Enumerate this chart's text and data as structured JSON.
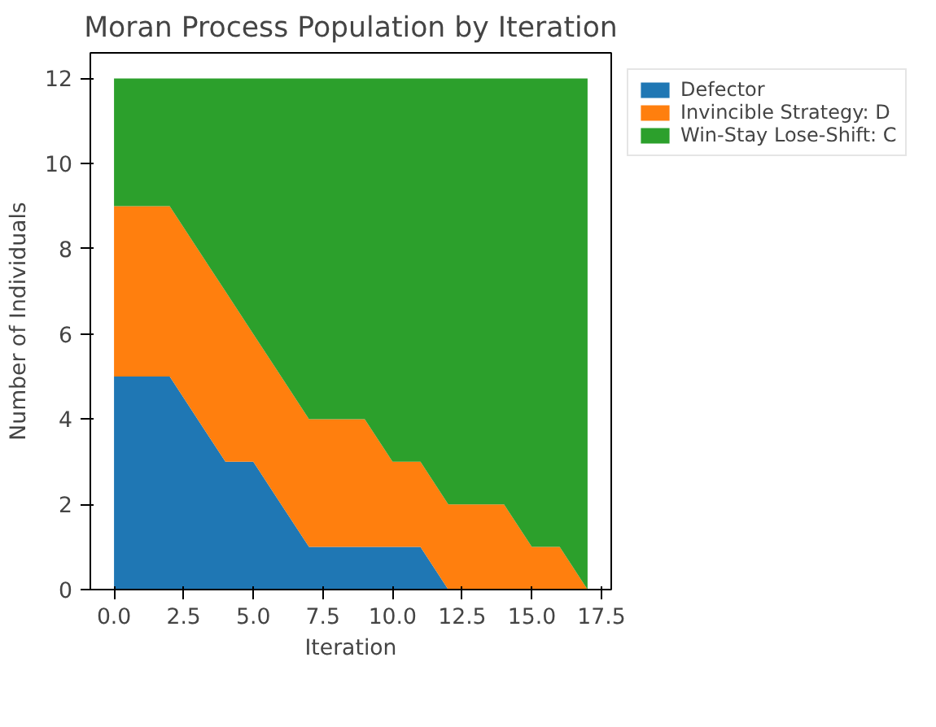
{
  "chart_data": {
    "type": "area",
    "stacked": true,
    "title": "Moran Process Population by Iteration",
    "xlabel": "Iteration",
    "ylabel": "Number of Individuals",
    "x": [
      0,
      1,
      2,
      3,
      4,
      5,
      6,
      7,
      8,
      9,
      10,
      11,
      12,
      13,
      14,
      15,
      16,
      17
    ],
    "series": [
      {
        "name": "Defector",
        "color": "#1f77b4",
        "values": [
          5,
          5,
          5,
          4,
          3,
          3,
          2,
          1,
          1,
          1,
          1,
          1,
          0,
          0,
          0,
          0,
          0,
          0
        ]
      },
      {
        "name": "Invincible Strategy: D",
        "color": "#ff7f0e",
        "values": [
          4,
          4,
          4,
          4,
          4,
          3,
          3,
          3,
          3,
          3,
          2,
          2,
          2,
          2,
          2,
          1,
          1,
          0
        ]
      },
      {
        "name": "Win-Stay Lose-Shift: C",
        "color": "#2ca02c",
        "values": [
          3,
          3,
          3,
          4,
          5,
          6,
          7,
          8,
          8,
          8,
          9,
          9,
          10,
          10,
          10,
          11,
          11,
          12
        ]
      }
    ],
    "xlim": [
      -0.85,
      17.85
    ],
    "ylim": [
      0,
      12.6
    ],
    "xticks": [
      {
        "value": 0,
        "label": "0.0"
      },
      {
        "value": 2.5,
        "label": "2.5"
      },
      {
        "value": 5,
        "label": "5.0"
      },
      {
        "value": 7.5,
        "label": "7.5"
      },
      {
        "value": 10,
        "label": "10.0"
      },
      {
        "value": 12.5,
        "label": "12.5"
      },
      {
        "value": 15,
        "label": "15.0"
      },
      {
        "value": 17.5,
        "label": "17.5"
      }
    ],
    "yticks": [
      0,
      2,
      4,
      6,
      8,
      10,
      12
    ],
    "legend": "right",
    "grid": false
  }
}
